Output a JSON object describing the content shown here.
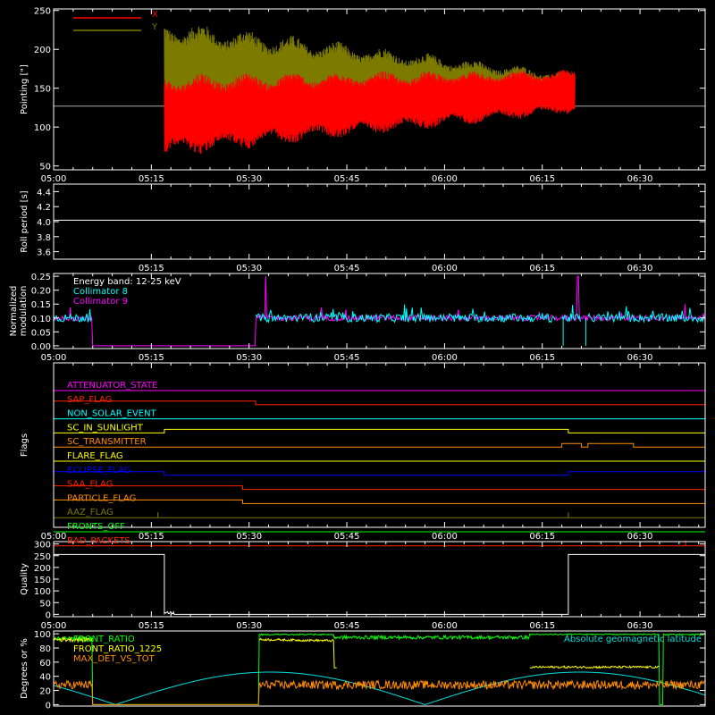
{
  "colors": {
    "background": "#000000",
    "axes": "#ffffff",
    "x": "#ff0000",
    "y": "#7d7a00",
    "collimator8": "#00ffff",
    "collimator9": "#ff00ff",
    "front_ratio": "#00ff00",
    "front_ratio_1225": "#ffff00",
    "max_det_vs_tot": "#ff8c00",
    "geomag": "#00e0e0"
  },
  "chart_data": [
    {
      "type": "line",
      "ylabel": "Pointing [\"]",
      "ylim": [
        45,
        252
      ],
      "yticks": [
        50,
        100,
        150,
        200,
        250
      ],
      "xlim_minutes": [
        0,
        100
      ],
      "xticks": [
        "05:00",
        "05:15",
        "05:30",
        "05:45",
        "06:00",
        "06:15",
        "06:30"
      ],
      "reference_line": 127,
      "series": [
        {
          "name": "X",
          "color": "#ff0000",
          "start": "05:17",
          "end": "06:20",
          "center_start": 115,
          "center_end": 146,
          "amp_start": 55,
          "amp_end": 28
        },
        {
          "name": "Y",
          "color": "#7d7a00",
          "start": "05:17",
          "end": "06:20",
          "center_start": 170,
          "center_end": 145,
          "amp_start": 70,
          "amp_end": 25
        }
      ]
    },
    {
      "type": "line",
      "ylabel": "Roll period [s]",
      "ylim": [
        3.5,
        4.5
      ],
      "yticks": [
        "3.6",
        "3.8",
        "4.0",
        "4.2",
        "4.4"
      ],
      "xticks": [
        "05:15",
        "05:30",
        "05:45",
        "06:00",
        "06:15",
        "06:30"
      ],
      "series": [
        {
          "name": "roll period",
          "value": 4.02
        }
      ]
    },
    {
      "type": "line",
      "ylabel": "Normalized modulation",
      "ylim": [
        -0.01,
        0.26
      ],
      "yticks": [
        "0.00",
        "0.05",
        "0.10",
        "0.15",
        "0.20",
        "0.25"
      ],
      "xticks": [
        "05:00",
        "05:15",
        "05:30",
        "05:45",
        "06:00",
        "06:15",
        "06:30"
      ],
      "legend": [
        "Energy band: 12-25 keV",
        "Collimator 8",
        "Collimator 9"
      ],
      "series": [
        {
          "name": "Collimator 8",
          "baseline": 0.1,
          "gaps": [
            [
              "05:06",
              "05:31"
            ],
            [
              "06:17",
              "06:18"
            ],
            [
              "06:21",
              "06:22"
            ]
          ]
        },
        {
          "name": "Collimator 9",
          "baseline": 0.1,
          "zero_interval": [
            "05:06",
            "05:31"
          ]
        }
      ]
    },
    {
      "type": "line",
      "ylabel": "Flags",
      "xticks": [
        "05:00",
        "05:15",
        "05:30",
        "05:45",
        "06:00",
        "06:15",
        "06:30"
      ],
      "flags": [
        {
          "name": "ATTENUATOR_STATE",
          "color": "#ff00ff",
          "steps": []
        },
        {
          "name": "SAP_FLAG",
          "color": "#ff2200",
          "steps": [
            [
              "05:31",
              0
            ]
          ],
          "initial": 1
        },
        {
          "name": "NON_SOLAR_EVENT",
          "color": "#00ffff",
          "steps": []
        },
        {
          "name": "SC_IN_SUNLIGHT",
          "color": "#ffff00",
          "steps": [
            [
              "05:17",
              1
            ],
            [
              "06:19",
              0
            ]
          ],
          "initial": 0
        },
        {
          "name": "SC_TRANSMITTER",
          "color": "#ff8c00",
          "steps": [
            [
              "06:18",
              1
            ],
            [
              "06:21",
              0
            ],
            [
              "06:22",
              1
            ],
            [
              "06:29",
              0
            ]
          ],
          "initial": 0
        },
        {
          "name": "FLARE_FLAG",
          "color": "#ffff00",
          "steps": []
        },
        {
          "name": "ECLIPSE_FLAG",
          "color": "#0000ff",
          "steps": [
            [
              "05:17",
              0
            ],
            [
              "06:19",
              1
            ]
          ],
          "initial": 1
        },
        {
          "name": "SAA_FLAG",
          "color": "#ff2200",
          "steps": [
            [
              "05:29",
              0
            ]
          ],
          "initial": 1
        },
        {
          "name": "PARTICLE_FLAG",
          "color": "#ff8c00",
          "steps": [
            [
              "05:29",
              0
            ]
          ],
          "initial": 1
        },
        {
          "name": "AAZ_FLAG",
          "color": "#7d7a00",
          "steps": [],
          "pulses": [
            "05:16",
            "06:19"
          ]
        },
        {
          "name": "FRONTS_OFF",
          "color": "#00ff00",
          "steps": []
        },
        {
          "name": "BAD_PACKETS",
          "color": "#ff2200",
          "steps": [],
          "pulses": [
            "06:37"
          ]
        }
      ]
    },
    {
      "type": "line",
      "ylabel": "Quality",
      "ylim": [
        -10,
        310
      ],
      "yticks": [
        0,
        50,
        100,
        150,
        200,
        250,
        300
      ],
      "xticks": [
        "05:00",
        "05:15",
        "05:30",
        "05:45",
        "06:00",
        "06:15",
        "06:30"
      ],
      "series": [
        {
          "name": "Quality",
          "high": 255,
          "intervals_high": [
            [
              "05:00",
              "05:17"
            ],
            [
              "06:19",
              "06:40"
            ]
          ]
        }
      ]
    },
    {
      "type": "line",
      "ylabel": "Degrees or %",
      "ylim": [
        -2,
        104
      ],
      "yticks": [
        0,
        20,
        40,
        60,
        80,
        100
      ],
      "legend": [
        "FRONT_RATIO",
        "FRONT_RATIO_1225",
        "MAX_DET_VS_TOT"
      ],
      "annotation": "Absolute geomagnetic latitude",
      "series": [
        {
          "name": "FRONT_RATIO",
          "color": "#00ff00"
        },
        {
          "name": "FRONT_RATIO_1225",
          "color": "#ffff00"
        },
        {
          "name": "MAX_DET_VS_TOT",
          "color": "#ff8c00"
        },
        {
          "name": "Absolute geomagnetic latitude",
          "color": "#00e0e0"
        }
      ]
    }
  ]
}
